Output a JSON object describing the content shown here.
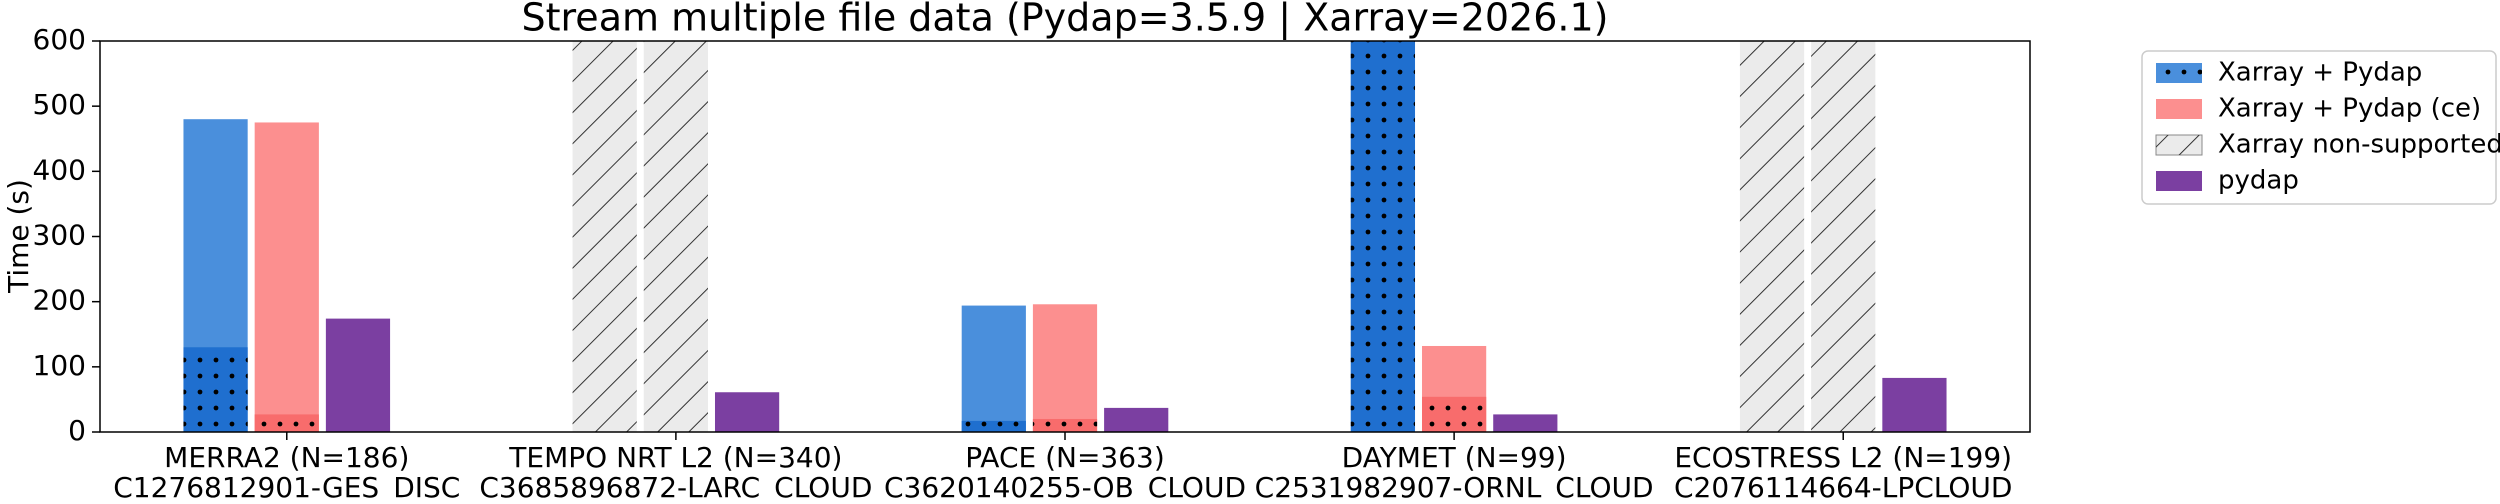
{
  "chart_data": {
    "type": "bar",
    "title": "Stream multiple file data (Pydap=3.5.9 | Xarray=2026.1)",
    "ylabel": "Time (s)",
    "categories": [
      [
        "MERRA2 (N=186)",
        "C1276812901-GES_DISC"
      ],
      [
        "TEMPO NRT L2 (N=340)",
        "C3685896872-LARC_CLOUD"
      ],
      [
        "PACE (N=363)",
        "C3620140255-OB_CLOUD"
      ],
      [
        "DAYMET (N=99)",
        "C2531982907-ORNL_CLOUD"
      ],
      [
        "ECOSTRESS L2 (N=199)",
        "C2076114664-LPCLOUD"
      ]
    ],
    "series": [
      {
        "name": "Xarray + Pydap",
        "color": "#4a8fdc",
        "inner_color": "#1f6fcf",
        "values": [
          480,
          null,
          194,
          600,
          null
        ],
        "inner_values": [
          130,
          null,
          17,
          600,
          null
        ],
        "pattern": "dots",
        "slot": 0
      },
      {
        "name": "Xarray + Pydap (ce)",
        "color": "#fc8f8f",
        "inner_color": "#f86c6c",
        "values": [
          475,
          null,
          196,
          132,
          null
        ],
        "inner_values": [
          27,
          null,
          20,
          54,
          null
        ],
        "slot": 1
      },
      {
        "name": "Xarray non-supported",
        "color": "#ebebeb",
        "values": [
          null,
          600,
          null,
          null,
          600
        ],
        "pattern": "hatch",
        "slots": [
          0,
          1
        ]
      },
      {
        "name": "pydap",
        "color": "#7b3fa1",
        "values": [
          174,
          61,
          37,
          27,
          83
        ],
        "slot": 2
      }
    ],
    "ylim": [
      0,
      600
    ],
    "yticks": [
      0,
      100,
      200,
      300,
      400,
      500,
      600
    ],
    "legend": "outside-right"
  }
}
